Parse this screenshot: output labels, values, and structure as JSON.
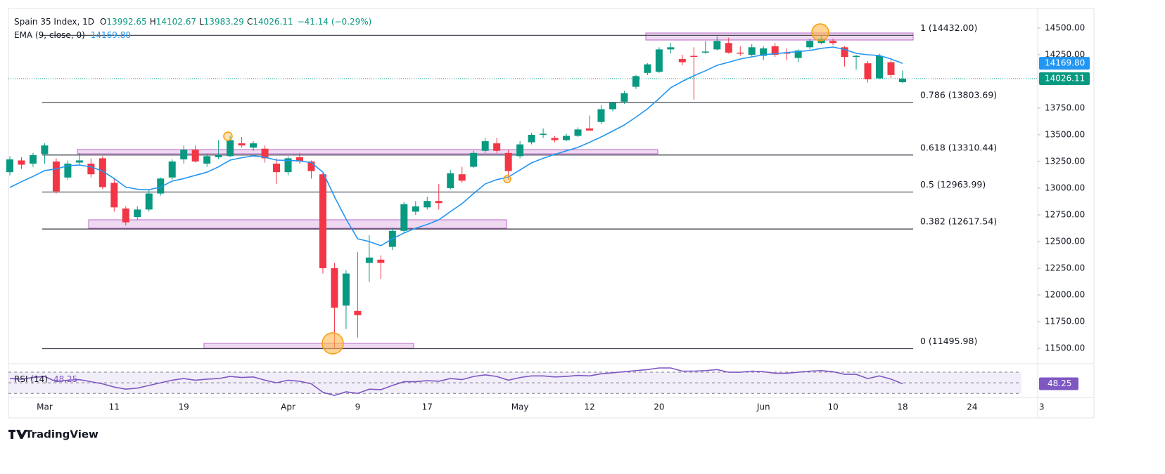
{
  "header": {
    "symbol": "Spain 35 Index, 1D",
    "o": "O",
    "h": "H",
    "l": "L",
    "c": "C",
    "change": "−41.14 (−0.29%)",
    "brand": "TradingView"
  },
  "chart_data": {
    "type": "candlestick",
    "categories": [
      null,
      null,
      null,
      "Mar",
      null,
      null,
      null,
      null,
      null,
      "11",
      null,
      null,
      null,
      null,
      null,
      "19",
      null,
      null,
      null,
      null,
      null,
      null,
      null,
      null,
      "Apr",
      null,
      null,
      null,
      null,
      null,
      "9",
      null,
      null,
      null,
      null,
      null,
      "17",
      null,
      null,
      null,
      null,
      null,
      null,
      null,
      "May",
      null,
      null,
      null,
      null,
      null,
      "12",
      null,
      null,
      null,
      null,
      null,
      "20",
      null,
      null,
      null,
      null,
      null,
      null,
      null,
      null,
      "Jun",
      null,
      null,
      null,
      null,
      null,
      "10",
      null,
      null,
      null,
      null,
      null,
      "18",
      null,
      null,
      null,
      null,
      null,
      "24",
      null,
      null,
      null,
      null,
      null,
      "3"
    ],
    "open": [
      13150,
      13260,
      13230,
      13320,
      13250,
      13100,
      13240,
      13230,
      13280,
      13050,
      12810,
      12730,
      12800,
      12950,
      13100,
      13270,
      13360,
      13230,
      13290,
      13300,
      13420,
      13380,
      13370,
      13230,
      13150,
      13290,
      13250,
      13130,
      12250,
      11900,
      11850,
      12300,
      12330,
      12450,
      12600,
      12780,
      12820,
      12880,
      13000,
      13130,
      13200,
      13350,
      13420,
      13330,
      13300,
      13430,
      13500,
      13470,
      13450,
      13490,
      13560,
      13620,
      13740,
      13810,
      13950,
      14080,
      14090,
      14300,
      14210,
      14240,
      14270,
      14300,
      14360,
      14270,
      14250,
      14240,
      14330,
      14270,
      14220,
      14320,
      14360,
      14380,
      14320,
      14230,
      14170,
      14030,
      14180,
      13992.65,
      null,
      null,
      null,
      null,
      null,
      null,
      null,
      null,
      null,
      null,
      null,
      null
    ],
    "high": [
      13300,
      13290,
      13330,
      13420,
      13280,
      13260,
      13330,
      13280,
      13300,
      13100,
      12830,
      12830,
      12980,
      13100,
      13270,
      13400,
      13400,
      13320,
      13450,
      13490,
      13480,
      13440,
      13400,
      13280,
      13300,
      13330,
      13260,
      13140,
      12300,
      12230,
      12400,
      12560,
      12370,
      12630,
      12870,
      12880,
      12920,
      13040,
      13170,
      13200,
      13350,
      13470,
      13470,
      13360,
      13440,
      13520,
      13560,
      13490,
      13510,
      13570,
      13680,
      13780,
      13810,
      13910,
      14060,
      14170,
      14320,
      14360,
      14250,
      14320,
      14380,
      14420,
      14410,
      14330,
      14350,
      14330,
      14360,
      14310,
      14300,
      14400,
      14440,
      14400,
      14330,
      14250,
      14190,
      14260,
      14200,
      14102.67,
      null,
      null,
      null,
      null,
      null,
      null,
      null,
      null,
      null,
      null,
      null,
      null
    ],
    "low": [
      13120,
      13180,
      13200,
      13230,
      12950,
      13080,
      13210,
      13100,
      12990,
      12780,
      12650,
      12700,
      12780,
      12930,
      13080,
      13230,
      13240,
      13200,
      13270,
      13290,
      13380,
      13350,
      13240,
      13040,
      13120,
      13230,
      13090,
      12200,
      11500,
      11680,
      11600,
      12120,
      12150,
      12420,
      12580,
      12750,
      12800,
      12800,
      12990,
      13050,
      13190,
      13330,
      13330,
      13080,
      13280,
      13410,
      13470,
      13430,
      13440,
      13480,
      13540,
      13600,
      13720,
      13790,
      13930,
      14060,
      14080,
      14260,
      14150,
      13830,
      14260,
      14290,
      14260,
      14240,
      14230,
      14200,
      14230,
      14200,
      14180,
      14300,
      14350,
      14340,
      14140,
      14110,
      13990,
      14020,
      14030,
      13983.29,
      null,
      null,
      null,
      null,
      null,
      null,
      null,
      null,
      null,
      null,
      null,
      null
    ],
    "close": [
      13270,
      13220,
      13310,
      13400,
      12970,
      13230,
      13260,
      13130,
      13010,
      12820,
      12680,
      12800,
      12950,
      13090,
      13250,
      13360,
      13250,
      13300,
      13310,
      13450,
      13400,
      13420,
      13280,
      13150,
      13280,
      13250,
      13160,
      12250,
      11880,
      12200,
      11810,
      12350,
      12300,
      12600,
      12850,
      12830,
      12880,
      12860,
      13140,
      13070,
      13330,
      13440,
      13350,
      13160,
      13410,
      13500,
      13510,
      13450,
      13490,
      13550,
      13540,
      13740,
      13800,
      13890,
      14050,
      14160,
      14300,
      14320,
      14180,
      14230,
      14280,
      14380,
      14270,
      14260,
      14320,
      14310,
      14250,
      14260,
      14290,
      14380,
      14400,
      14360,
      14230,
      14240,
      14020,
      14240,
      14060,
      14026.11,
      null,
      null,
      null,
      null,
      null,
      null,
      null,
      null,
      null,
      null,
      null,
      null
    ],
    "up_color": "#089981",
    "down_color": "#f23645",
    "ema": {
      "name": "EMA (9, close, 0)",
      "color": "#2196f3",
      "last_label": "14169.80",
      "values": [
        13007,
        13060,
        13110,
        13165,
        13180,
        13210,
        13217,
        13200,
        13160,
        13090,
        13010,
        12990,
        12985,
        13010,
        13066,
        13090,
        13120,
        13150,
        13200,
        13263,
        13285,
        13303,
        13290,
        13263,
        13260,
        13255,
        13240,
        13150,
        12921,
        12711,
        12526,
        12500,
        12461,
        12526,
        12580,
        12625,
        12660,
        12704,
        12780,
        12855,
        12950,
        13040,
        13080,
        13105,
        13170,
        13237,
        13280,
        13316,
        13350,
        13382,
        13430,
        13480,
        13535,
        13592,
        13665,
        13743,
        13840,
        13941,
        14000,
        14053,
        14100,
        14151,
        14180,
        14210,
        14230,
        14250,
        14260,
        14270,
        14280,
        14290,
        14310,
        14322,
        14300,
        14263,
        14250,
        14243,
        14210,
        14169.8,
        null,
        null,
        null,
        null,
        null,
        null,
        null,
        null,
        null,
        null,
        null,
        null
      ]
    },
    "ylim": [
      11355,
      14684
    ],
    "yticks": [
      {
        "value": 11500,
        "label": "11500.00"
      },
      {
        "value": 11750,
        "label": "11750.00"
      },
      {
        "value": 12000,
        "label": "12000.00"
      },
      {
        "value": 12250,
        "label": "12250.00"
      },
      {
        "value": 12500,
        "label": "12500.00"
      },
      {
        "value": 12750,
        "label": "12750.00"
      },
      {
        "value": 13000,
        "label": "13000.00"
      },
      {
        "value": 13250,
        "label": "13250.00"
      },
      {
        "value": 13500,
        "label": "13500.00"
      },
      {
        "value": 13750,
        "label": "13750.00"
      },
      {
        "value": 14000,
        "label": "14000.00"
      },
      {
        "value": 14250,
        "label": "14250.00"
      },
      {
        "value": 14500,
        "label": "14500.00"
      }
    ],
    "fib": [
      {
        "value": 14432,
        "label": "1 (14432.00)"
      },
      {
        "value": 13803.69,
        "label": "0.786 (13803.69)"
      },
      {
        "value": 13310.44,
        "label": "0.618 (13310.44)"
      },
      {
        "value": 12963.99,
        "label": "0.5 (12963.99)"
      },
      {
        "value": 12617.54,
        "label": "0.382 (12617.54)"
      },
      {
        "value": 11495.98,
        "label": "0 (11495.98)"
      }
    ],
    "rsi": {
      "name": "RSI (14)",
      "color": "#7e57c2",
      "ylim": [
        25,
        82
      ],
      "levels": [
        30,
        50,
        70
      ],
      "values": [
        58,
        57,
        60,
        62,
        52,
        55,
        56,
        52,
        48,
        42,
        38,
        40,
        45,
        50,
        55,
        58,
        55,
        57,
        58,
        62,
        60,
        61,
        55,
        50,
        55,
        53,
        48,
        32,
        26,
        33,
        30,
        38,
        37,
        45,
        52,
        52,
        54,
        53,
        58,
        56,
        62,
        65,
        62,
        55,
        60,
        63,
        63,
        61,
        62,
        64,
        63,
        67,
        69,
        71,
        73,
        75,
        78,
        78,
        72,
        72,
        73,
        75,
        70,
        70,
        72,
        71,
        68,
        68,
        70,
        72,
        73,
        71,
        66,
        66,
        58,
        63,
        57,
        48.25,
        null,
        null,
        null,
        null,
        null,
        null,
        null,
        null,
        null,
        null,
        null,
        null
      ]
    }
  }
}
